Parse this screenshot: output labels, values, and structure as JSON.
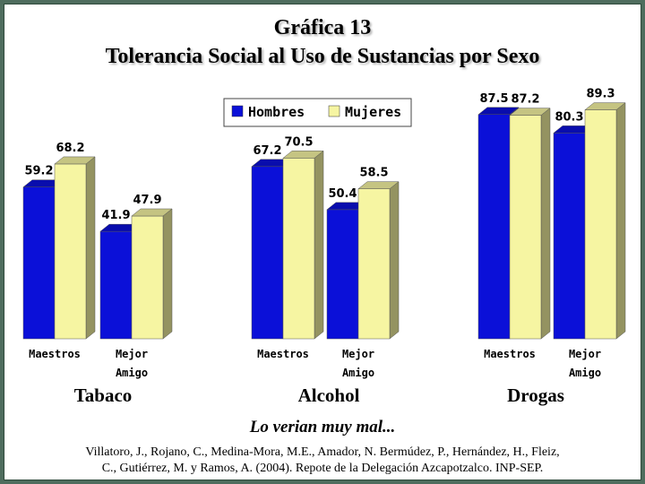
{
  "chart_data": {
    "type": "bar",
    "title": "Gráfica 13",
    "subtitle": "Tolerancia Social al Uso de Sustancias por Sexo",
    "legend": {
      "position": "top-center",
      "entries": [
        "Hombres",
        "Mujeres"
      ]
    },
    "groups": [
      "Tabaco",
      "Alcohol",
      "Drogas"
    ],
    "categories": [
      {
        "group": "Tabaco",
        "line1": "Maestros",
        "line2": ""
      },
      {
        "group": "Tabaco",
        "line1": "Mejor",
        "line2": "Amigo"
      },
      {
        "group": "Alcohol",
        "line1": "Maestros",
        "line2": ""
      },
      {
        "group": "Alcohol",
        "line1": "Mejor",
        "line2": "Amigo"
      },
      {
        "group": "Drogas",
        "line1": "Maestros",
        "line2": ""
      },
      {
        "group": "Drogas",
        "line1": "Mejor",
        "line2": "Amigo"
      }
    ],
    "series": [
      {
        "name": "Hombres",
        "color": "#0b10d8",
        "values": [
          59.2,
          41.9,
          67.2,
          50.4,
          87.5,
          80.3
        ]
      },
      {
        "name": "Mujeres",
        "color": "#f6f5a2",
        "values": [
          68.2,
          47.9,
          70.5,
          58.5,
          87.2,
          89.3
        ]
      }
    ],
    "value_labels": [
      [
        "59.2",
        "41.9",
        "67.2",
        "50.4",
        "87.5",
        "80.3"
      ],
      [
        "68.2",
        "47.9",
        "70.5",
        "58.5",
        "87.2",
        "89.3"
      ]
    ],
    "ylim": [
      0,
      100
    ],
    "xlabel": "Lo verian muy mal...",
    "grid": false
  },
  "citation_line1": "Villatoro, J., Rojano, C., Medina-Mora, M.E., Amador, N. Bermúdez, P., Hernández, H., Fleiz,",
  "citation_line2": "C., Gutiérrez, M. y Ramos, A. (2004). Repote de la Delegación Azcapotzalco. INP-SEP."
}
